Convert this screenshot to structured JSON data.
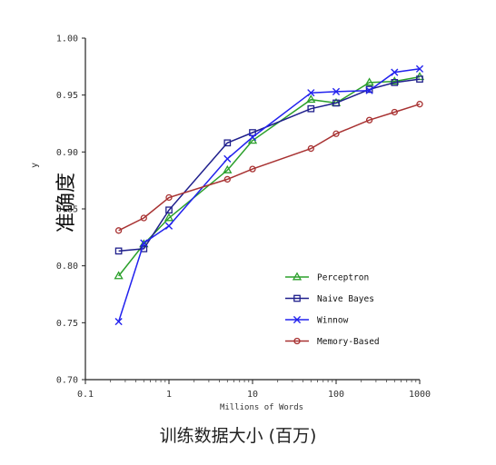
{
  "chart_data": {
    "type": "line",
    "xlabel": "Millions of Words",
    "xscale": "log",
    "xlim": [
      0.1,
      1000
    ],
    "ylim": [
      0.7,
      1.0
    ],
    "xticks": [
      "0.1",
      "1",
      "10",
      "100",
      "1000"
    ],
    "yticks": [
      "0.70",
      "0.75",
      "0.80",
      "0.85",
      "0.90",
      "0.95",
      "1.00"
    ],
    "ylabel_overlay": "准确度",
    "ylabel_faint": "y",
    "xlabel_overlay": "训练数据大小 (百万)",
    "legend_position": "lower-right",
    "grid": false,
    "series": [
      {
        "name": "Perceptron",
        "color": "#2ca02c",
        "marker": "triangle",
        "x": [
          0.25,
          0.5,
          1,
          5,
          10,
          50,
          100,
          250,
          500,
          1000
        ],
        "y": [
          0.791,
          0.819,
          0.842,
          0.884,
          0.91,
          0.946,
          0.943,
          0.961,
          0.962,
          0.966
        ]
      },
      {
        "name": "Naive Bayes",
        "color": "#1f1f8c",
        "marker": "square",
        "x": [
          0.25,
          0.5,
          1,
          5,
          10,
          50,
          100,
          250,
          500,
          1000
        ],
        "y": [
          0.813,
          0.815,
          0.849,
          0.908,
          0.917,
          0.938,
          0.943,
          0.955,
          0.961,
          0.964
        ]
      },
      {
        "name": "Winnow",
        "color": "#2222ee",
        "marker": "x",
        "x": [
          0.25,
          0.5,
          1,
          5,
          10,
          50,
          100,
          250,
          500,
          1000
        ],
        "y": [
          0.751,
          0.82,
          0.835,
          0.894,
          0.913,
          0.952,
          0.953,
          0.954,
          0.97,
          0.973
        ]
      },
      {
        "name": "Memory-Based",
        "color": "#a83232",
        "marker": "circle",
        "x": [
          0.25,
          0.5,
          1,
          5,
          10,
          50,
          100,
          250,
          500,
          1000
        ],
        "y": [
          0.831,
          0.842,
          0.86,
          0.876,
          0.885,
          0.903,
          0.916,
          0.928,
          0.935,
          0.942
        ]
      }
    ]
  }
}
